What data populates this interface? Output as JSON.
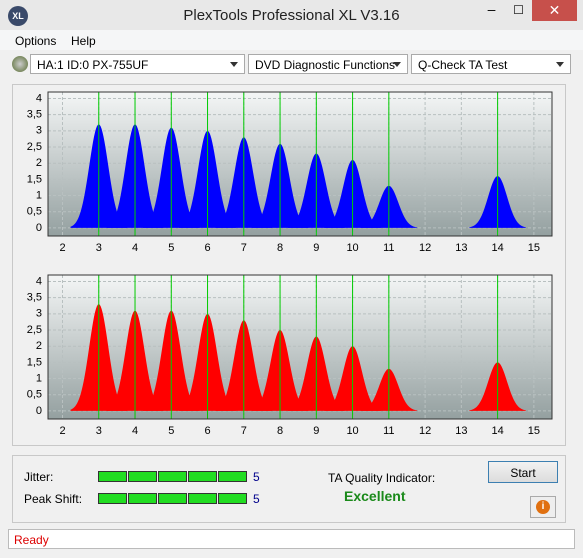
{
  "window": {
    "title": "PlexTools Professional XL V3.16",
    "icon": "XL"
  },
  "menu": [
    "Options",
    "Help"
  ],
  "selectors": [
    "HA:1 ID:0  PX-755UF",
    "DVD Diagnostic Functions",
    "Q-Check TA Test"
  ],
  "charts": [
    {
      "type": "histogram-peaks",
      "color": "#0000ff",
      "reference_color": "#00cc00",
      "xlim": [
        1.6,
        15.5
      ],
      "ylim": [
        -0.25,
        4.2
      ],
      "xticks": [
        2,
        3,
        4,
        5,
        6,
        7,
        8,
        9,
        10,
        11,
        12,
        13,
        14,
        15
      ],
      "yticks": [
        0,
        {
          "value": 0.5,
          "label": "0,5"
        },
        1,
        {
          "value": 1.5,
          "label": "1,5"
        },
        2,
        {
          "value": 2.5,
          "label": "2,5"
        },
        3,
        {
          "value": 3.5,
          "label": "3,5"
        },
        4
      ],
      "peaks": {
        "x": [
          3,
          4,
          5,
          6,
          7,
          8,
          9,
          10,
          11,
          14
        ],
        "values": [
          3.2,
          3.2,
          3.1,
          3.0,
          2.8,
          2.6,
          2.3,
          2.1,
          1.3,
          1.6
        ]
      }
    },
    {
      "type": "histogram-peaks",
      "color": "#ff0000",
      "reference_color": "#00cc00",
      "xlim": [
        1.6,
        15.5
      ],
      "ylim": [
        -0.25,
        4.2
      ],
      "xticks": [
        2,
        3,
        4,
        5,
        6,
        7,
        8,
        9,
        10,
        11,
        12,
        13,
        14,
        15
      ],
      "yticks": [
        0,
        {
          "value": 0.5,
          "label": "0,5"
        },
        1,
        {
          "value": 1.5,
          "label": "1,5"
        },
        2,
        {
          "value": 2.5,
          "label": "2,5"
        },
        3,
        {
          "value": 3.5,
          "label": "3,5"
        },
        4
      ],
      "peaks": {
        "x": [
          3,
          4,
          5,
          6,
          7,
          8,
          9,
          10,
          11,
          14
        ],
        "values": [
          3.3,
          3.1,
          3.1,
          3.0,
          2.8,
          2.5,
          2.3,
          2.0,
          1.3,
          1.5
        ]
      }
    }
  ],
  "meters": [
    {
      "label": "Jitter:",
      "value": 5
    },
    {
      "label": "Peak Shift:",
      "value": 5
    }
  ],
  "quality": {
    "label": "TA Quality Indicator:",
    "value": "Excellent"
  },
  "start_button": "Start",
  "status": "Ready"
}
